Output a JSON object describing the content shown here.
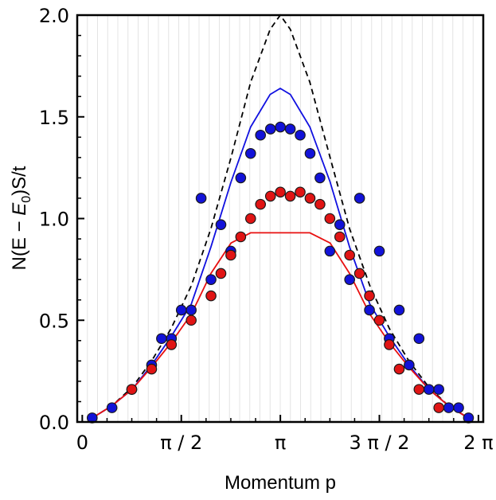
{
  "chart_data": {
    "type": "scatter",
    "xlabel": "Momentum p",
    "ylabel": "N(E − E0)S/t",
    "ylabel_parts": {
      "prefix": "N(E − ",
      "italic": "E",
      "sub": "0",
      "suffix": ")S/t"
    },
    "xlim": [
      -0.08,
      6.36
    ],
    "ylim": [
      0,
      2.0
    ],
    "x_ticks": [
      {
        "value": 0,
        "label": "0"
      },
      {
        "value": 1.5708,
        "label": "π / 2"
      },
      {
        "value": 3.1416,
        "label": "π"
      },
      {
        "value": 4.7124,
        "label": "3 π / 2"
      },
      {
        "value": 6.2832,
        "label": "2 π"
      }
    ],
    "y_ticks": [
      {
        "value": 0.0,
        "label": "0.0"
      },
      {
        "value": 0.5,
        "label": "0.5"
      },
      {
        "value": 1.0,
        "label": "1.0"
      },
      {
        "value": 1.5,
        "label": "1.5"
      },
      {
        "value": 2.0,
        "label": "2.0"
      }
    ],
    "grid": "vertical lines",
    "series": [
      {
        "kind": "line",
        "style": "dashed",
        "color": "#000000",
        "x": [
          0.16,
          0.47,
          0.79,
          1.1,
          1.41,
          1.73,
          2.04,
          2.36,
          2.67,
          2.98,
          3.14,
          3.3,
          3.61,
          3.93,
          4.24,
          4.56,
          4.87,
          5.18,
          5.5,
          5.81,
          6.12
        ],
        "values": [
          0.02,
          0.08,
          0.17,
          0.3,
          0.46,
          0.67,
          0.95,
          1.3,
          1.67,
          1.93,
          2.0,
          1.93,
          1.67,
          1.3,
          0.95,
          0.67,
          0.46,
          0.3,
          0.17,
          0.08,
          0.02
        ]
      },
      {
        "kind": "line",
        "style": "solid",
        "color": "#1010e0",
        "x": [
          0.16,
          0.47,
          0.79,
          1.1,
          1.41,
          1.73,
          2.04,
          2.36,
          2.67,
          2.98,
          3.14,
          3.3,
          3.61,
          3.93,
          4.24,
          4.56,
          4.87,
          5.18,
          5.5,
          5.81,
          6.12
        ],
        "values": [
          0.02,
          0.08,
          0.16,
          0.28,
          0.42,
          0.58,
          0.86,
          1.18,
          1.45,
          1.61,
          1.64,
          1.61,
          1.45,
          1.18,
          0.86,
          0.58,
          0.42,
          0.28,
          0.16,
          0.08,
          0.02
        ]
      },
      {
        "kind": "line",
        "style": "solid",
        "color": "#e81010",
        "x": [
          0.16,
          0.47,
          0.79,
          1.1,
          1.41,
          1.73,
          2.04,
          2.36,
          2.67,
          2.98,
          3.14,
          3.3,
          3.61,
          3.93,
          4.24,
          4.56,
          4.87,
          5.18,
          5.5,
          5.81,
          6.12
        ],
        "values": [
          0.02,
          0.08,
          0.16,
          0.27,
          0.39,
          0.53,
          0.73,
          0.88,
          0.93,
          0.93,
          0.93,
          0.93,
          0.93,
          0.88,
          0.73,
          0.53,
          0.39,
          0.27,
          0.16,
          0.08,
          0.02
        ]
      },
      {
        "kind": "points",
        "color": "#1212d8",
        "x": [
          0.157,
          0.471,
          0.785,
          1.1,
          1.414,
          1.728,
          2.042,
          2.356,
          2.67,
          2.985,
          3.299,
          3.613,
          3.927,
          4.241,
          4.555,
          4.869,
          5.184,
          5.498,
          5.812,
          6.126,
          2.199,
          2.513,
          2.827,
          3.142,
          3.456,
          3.77,
          4.084,
          4.398,
          1.257,
          1.571,
          1.885,
          4.712,
          5.027,
          5.341,
          5.655,
          5.969
        ],
        "values": [
          0.02,
          0.07,
          0.16,
          0.28,
          0.41,
          0.55,
          0.7,
          0.84,
          1.32,
          1.44,
          1.44,
          1.32,
          0.84,
          0.7,
          0.55,
          0.41,
          0.28,
          0.16,
          0.07,
          0.02,
          0.97,
          1.2,
          1.41,
          1.45,
          1.41,
          1.2,
          0.97,
          1.1,
          0.41,
          0.55,
          1.1,
          0.84,
          0.55,
          0.41,
          0.16,
          0.07
        ]
      },
      {
        "kind": "points",
        "color": "#e01414",
        "x": [
          0.785,
          1.1,
          1.414,
          1.728,
          2.042,
          2.199,
          2.356,
          2.513,
          2.67,
          2.827,
          2.985,
          3.142,
          3.299,
          3.456,
          3.613,
          3.77,
          3.927,
          4.084,
          4.241,
          4.398,
          4.555,
          4.712,
          4.869,
          5.027,
          5.341,
          5.655
        ],
        "values": [
          0.16,
          0.26,
          0.38,
          0.5,
          0.62,
          0.73,
          0.82,
          0.91,
          1.0,
          1.07,
          1.11,
          1.13,
          1.11,
          1.13,
          1.1,
          1.07,
          1.0,
          0.91,
          0.82,
          0.73,
          0.62,
          0.5,
          0.38,
          0.26,
          0.16,
          0.07
        ]
      }
    ]
  }
}
